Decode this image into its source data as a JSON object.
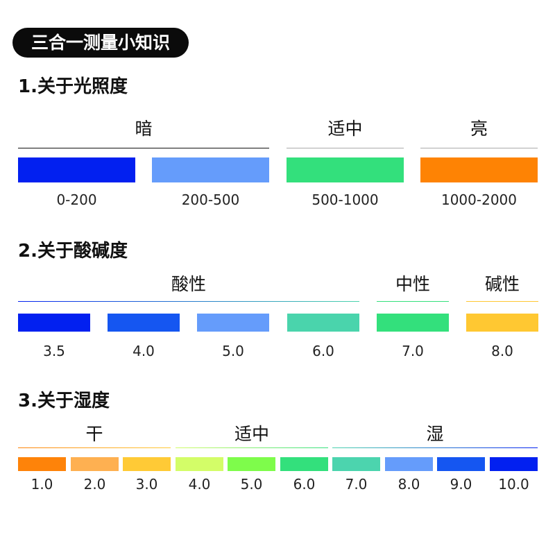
{
  "title": "三合一测量小知识",
  "light": {
    "heading": "1.关于光照度",
    "groups": [
      {
        "label": "暗",
        "line": "#111111"
      },
      {
        "label": "适中",
        "line": "#aaaaaa"
      },
      {
        "label": "亮",
        "line": "#aaaaaa"
      }
    ],
    "bars": [
      {
        "label": "0-200",
        "color": "#0220F0"
      },
      {
        "label": "200-500",
        "color": "#659CFB"
      },
      {
        "label": "500-1000",
        "color": "#33E07C"
      },
      {
        "label": "1000-2000",
        "color": "#FE8304"
      }
    ]
  },
  "ph": {
    "heading": "2.关于酸碱度",
    "groups": [
      {
        "label": "酸性"
      },
      {
        "label": "中性",
        "line": "#33E07C"
      },
      {
        "label": "碱性",
        "line": "#FFC832"
      }
    ],
    "bars": [
      {
        "label": "3.5",
        "color": "#0220F0"
      },
      {
        "label": "4.0",
        "color": "#1556F1"
      },
      {
        "label": "5.0",
        "color": "#659CFB"
      },
      {
        "label": "6.0",
        "color": "#4AD4AC"
      },
      {
        "label": "7.0",
        "color": "#33E07C"
      },
      {
        "label": "8.0",
        "color": "#FFC832"
      }
    ]
  },
  "humidity": {
    "heading": "3.关于湿度",
    "groups": [
      {
        "label": "干"
      },
      {
        "label": "适中"
      },
      {
        "label": "湿"
      }
    ],
    "bars": [
      {
        "label": "1.0",
        "color": "#FE8309"
      },
      {
        "label": "2.0",
        "color": "#FEB051"
      },
      {
        "label": "3.0",
        "color": "#FFCA36"
      },
      {
        "label": "4.0",
        "color": "#D3FD68"
      },
      {
        "label": "5.0",
        "color": "#7EFC4B"
      },
      {
        "label": "6.0",
        "color": "#33E07C"
      },
      {
        "label": "7.0",
        "color": "#4CD4AE"
      },
      {
        "label": "8.0",
        "color": "#659CFB"
      },
      {
        "label": "9.0",
        "color": "#1556F1"
      },
      {
        "label": "10.0",
        "color": "#0220F0"
      }
    ]
  }
}
